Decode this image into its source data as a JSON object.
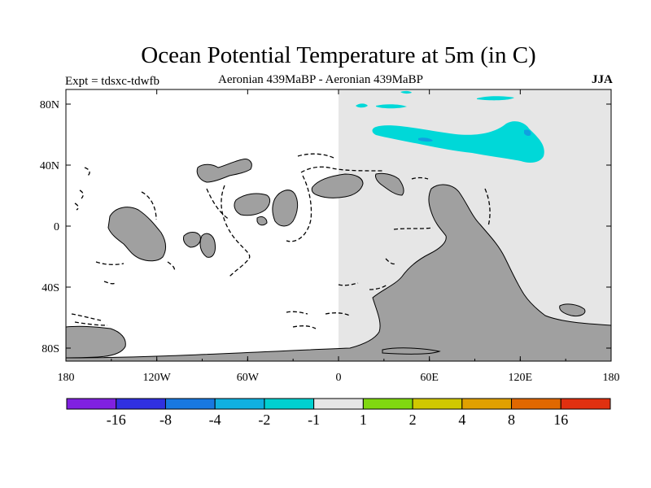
{
  "title": "Ocean Potential Temperature at 5m (in C)",
  "expt_label": "Expt = tdsxc-tdwfb",
  "subtitle": "Aeronian 439MaBP - Aeronian 439MaBP",
  "season": "JJA",
  "map": {
    "x_ticks": [
      "180",
      "120W",
      "60W",
      "0",
      "60E",
      "120E",
      "180"
    ],
    "y_ticks": [
      "80N",
      "40N",
      "0",
      "40S",
      "80S"
    ],
    "colors": {
      "land": "#a0a0a0",
      "neutral_ocean": "#e6e6e6",
      "anomaly_cyan": "#00d8d8",
      "anomaly_blue": "#10a0e0"
    }
  },
  "colorbar": {
    "colors": [
      "#8020e0",
      "#3030e0",
      "#1878e0",
      "#10b0e0",
      "#00d0d0",
      "#e6e6e6",
      "#80d810",
      "#d0c800",
      "#e0a000",
      "#e06800",
      "#e03010"
    ],
    "labels": [
      "-16",
      "-8",
      "-4",
      "-2",
      "-1",
      "1",
      "2",
      "4",
      "8",
      "16"
    ]
  }
}
